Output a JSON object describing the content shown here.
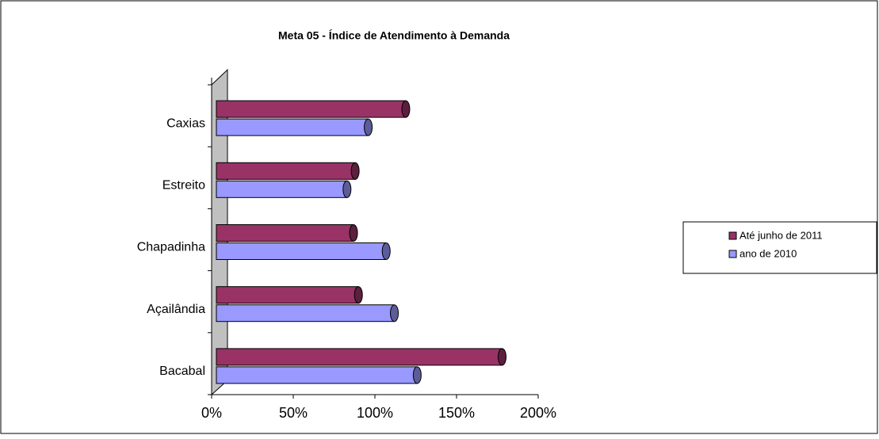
{
  "chart_data": {
    "type": "bar",
    "orientation": "horizontal",
    "title": "Meta 05 - Índice de Atendimento à Demanda",
    "categories": [
      "Caxias",
      "Estreito",
      "Chapadinha",
      "Açailândia",
      "Bacabal"
    ],
    "series": [
      {
        "name": "Até junho de 2011",
        "color": "#993366",
        "values": [
          116,
          85,
          84,
          87,
          175
        ]
      },
      {
        "name": "ano de 2010",
        "color": "#9999ff",
        "values": [
          93,
          80,
          104,
          109,
          123
        ]
      }
    ],
    "xlim": [
      0,
      200
    ],
    "xticks": [
      {
        "value": 0,
        "label": "0%"
      },
      {
        "value": 50,
        "label": "50%"
      },
      {
        "value": 100,
        "label": "100%"
      },
      {
        "value": 150,
        "label": "150%"
      },
      {
        "value": 200,
        "label": "200%"
      }
    ],
    "legend": "right"
  }
}
